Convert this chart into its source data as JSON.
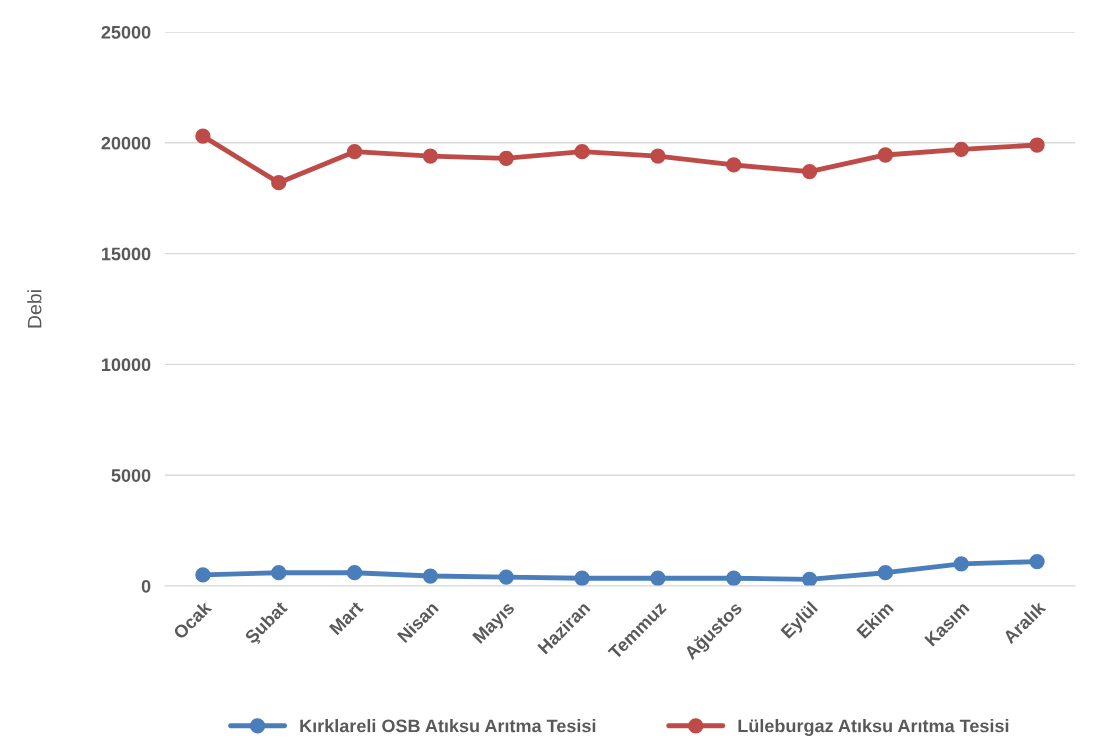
{
  "chart_data": {
    "type": "line",
    "ylabel": "Debi",
    "categories": [
      "Ocak",
      "Şubat",
      "Mart",
      "Nisan",
      "Mayıs",
      "Haziran",
      "Temmuz",
      "Ağustos",
      "Eylül",
      "Ekim",
      "Kasım",
      "Aralık"
    ],
    "series": [
      {
        "name": "Kırklareli OSB Atıksu Arıtma Tesisi",
        "color": "#4a7ebb",
        "values": [
          500,
          600,
          600,
          450,
          400,
          350,
          350,
          350,
          300,
          600,
          1000,
          1100
        ]
      },
      {
        "name": "Lüleburgaz Atıksu Arıtma Tesisi",
        "color": "#be4b48",
        "values": [
          20300,
          18200,
          19600,
          19400,
          19300,
          19600,
          19400,
          19000,
          18700,
          19450,
          19700,
          19900
        ]
      }
    ],
    "ylim": [
      0,
      25000
    ],
    "yticks": [
      0,
      5000,
      10000,
      15000,
      20000,
      25000
    ],
    "grid": "y",
    "legend": "bottom",
    "marker": "circle",
    "line_style": "solid"
  }
}
